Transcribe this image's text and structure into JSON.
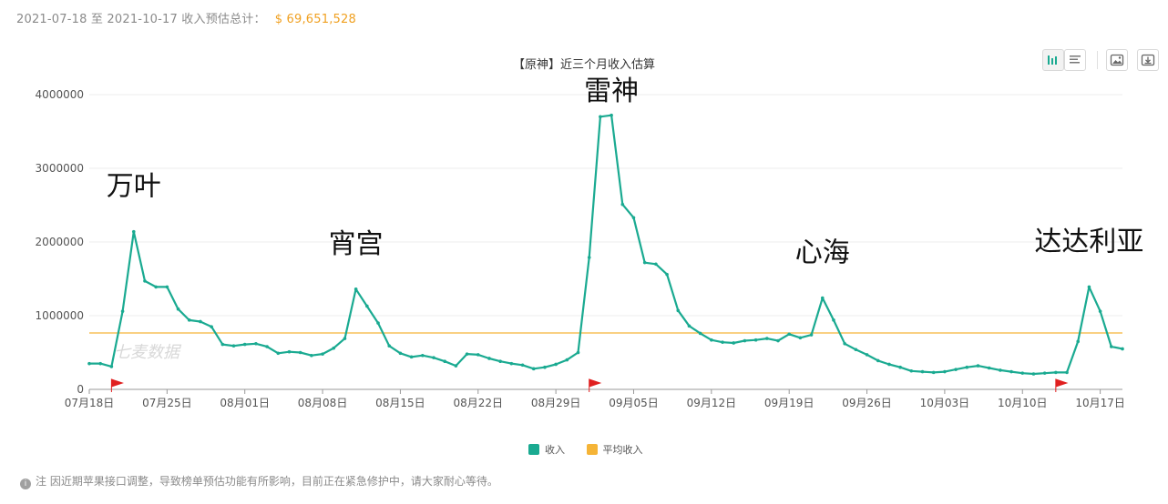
{
  "summary": {
    "date_range": "2021-07-18 至 2021-10-17 收入预估总计：",
    "total": "$ 69,651,528"
  },
  "chart_data": {
    "type": "line",
    "title": "【原神】近三个月收入估算",
    "x_tick_labels": [
      "07月18日",
      "07月25日",
      "08月01日",
      "08月08日",
      "08月15日",
      "08月22日",
      "08月29日",
      "09月05日",
      "09月12日",
      "09月19日",
      "09月26日",
      "10月03日",
      "10月10日",
      "10月17日"
    ],
    "y_tick_labels": [
      "0",
      "1000000",
      "2000000",
      "3000000",
      "4000000"
    ],
    "ylim": [
      0,
      4000000
    ],
    "grid": true,
    "legend_position": "bottom",
    "series": [
      {
        "name": "收入",
        "color": "#1aaa91",
        "values": [
          350000,
          350000,
          310000,
          1060000,
          2140000,
          1470000,
          1390000,
          1390000,
          1090000,
          940000,
          920000,
          850000,
          610000,
          590000,
          610000,
          620000,
          580000,
          490000,
          510000,
          500000,
          460000,
          480000,
          560000,
          690000,
          1360000,
          1130000,
          900000,
          590000,
          490000,
          440000,
          460000,
          430000,
          380000,
          320000,
          480000,
          470000,
          420000,
          380000,
          350000,
          330000,
          280000,
          300000,
          340000,
          400000,
          500000,
          1790000,
          3700000,
          3720000,
          2510000,
          2330000,
          1720000,
          1700000,
          1560000,
          1070000,
          860000,
          760000,
          670000,
          640000,
          630000,
          660000,
          670000,
          690000,
          660000,
          750000,
          700000,
          740000,
          1240000,
          940000,
          620000,
          540000,
          470000,
          390000,
          340000,
          300000,
          250000,
          240000,
          230000,
          240000,
          270000,
          300000,
          320000,
          290000,
          260000,
          240000,
          220000,
          210000,
          220000,
          230000,
          230000,
          650000,
          1390000,
          1060000,
          580000,
          550000
        ]
      },
      {
        "name": "平均收入",
        "color": "#f5b437",
        "values": [
          765000
        ]
      }
    ],
    "markers": [
      2,
      45,
      87
    ],
    "marker_color": "#e02020",
    "annotations": [
      {
        "text": "万叶",
        "index": 4
      },
      {
        "text": "宵宫",
        "index": 24
      },
      {
        "text": "雷神",
        "index": 47
      },
      {
        "text": "心海",
        "index": 66
      },
      {
        "text": "达达利亚",
        "index": 90
      }
    ],
    "watermark": "七麦数据"
  },
  "legend": {
    "income_label": "收入",
    "avg_label": "平均收入"
  },
  "note": "注 因近期苹果接口调整，导致榜单预估功能有所影响，目前正在紧急修护中，请大家耐心等待。",
  "toolbar": {
    "icons": [
      "bar-chart-icon",
      "list-icon",
      "image-save-icon",
      "download-icon"
    ]
  }
}
